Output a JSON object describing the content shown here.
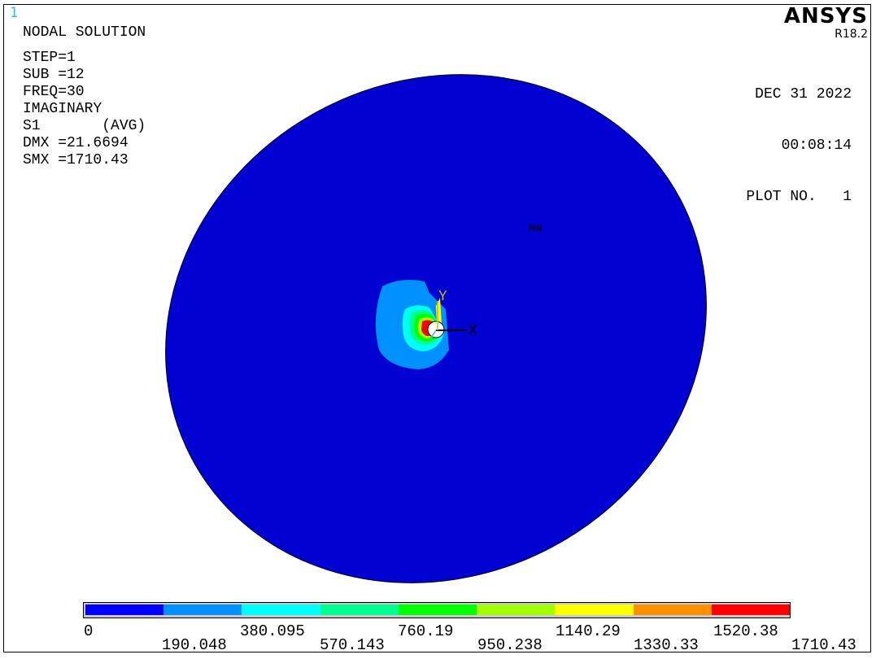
{
  "window_number": "1",
  "info_lines": [
    "NODAL SOLUTION",
    "STEP=1",
    "SUB =12",
    "FREQ=30",
    "IMAGINARY",
    "S1       (AVG)",
    "DMX =21.6694",
    "SMX =1710.43"
  ],
  "brand": {
    "logo": "ANSYS",
    "version": "R18.2"
  },
  "stamp": {
    "date": "DEC 31 2022",
    "time": "00:08:14",
    "plot": "PLOT NO.   1"
  },
  "plot": {
    "mn_label": "MN",
    "x_axis": "X",
    "y_axis": "Y"
  },
  "colors": {
    "plate": "#0000d0",
    "bands": [
      "#0000ff",
      "#0090ff",
      "#00ffff",
      "#00ff90",
      "#00ff00",
      "#a0ff00",
      "#ffff00",
      "#ff9000",
      "#ff0000"
    ]
  },
  "legend": {
    "upper_ticks": [
      "0",
      "380.095",
      "760.19",
      "1140.29",
      "1520.38"
    ],
    "lower_ticks": [
      "190.048",
      "570.143",
      "950.238",
      "1330.33",
      "1710.43"
    ]
  }
}
